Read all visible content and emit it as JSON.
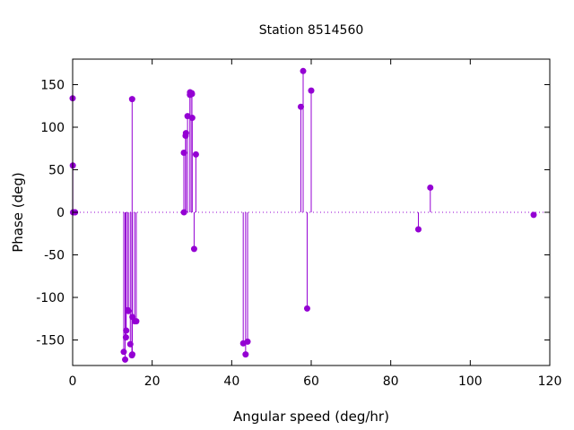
{
  "chart_data": {
    "type": "scatter",
    "style": "impulses-with-points",
    "title": "Station 8514560",
    "xlabel": "Angular speed (deg/hr)",
    "ylabel": "Phase (deg)",
    "xlim": [
      0,
      120
    ],
    "ylim": [
      -180,
      180
    ],
    "xticks": [
      0,
      20,
      40,
      60,
      80,
      100,
      120
    ],
    "yticks": [
      -150,
      -100,
      -50,
      0,
      50,
      100,
      150
    ],
    "grid": false,
    "zero_line": "dotted",
    "color": "#9400d3",
    "series": [
      {
        "x": [
          0.0,
          0.04,
          0.1,
          0.5,
          0.6,
          12.85,
          13.2,
          13.4,
          13.47,
          13.9,
          14.0,
          14.5,
          14.9,
          14.96,
          15.0,
          15.04,
          15.6,
          16.0,
          27.97,
          28.0,
          28.4,
          28.5,
          28.9,
          29.5,
          29.53,
          29.96,
          30.0,
          30.08,
          30.55,
          31.0,
          42.9,
          43.5,
          44.0,
          57.4,
          57.97,
          58.98,
          60.0,
          86.95,
          89.95,
          115.94
        ],
        "y": [
          134,
          55,
          0,
          0,
          0,
          -164,
          -173,
          -147,
          -139,
          -115,
          -116,
          -155,
          -168,
          133,
          -167,
          -123,
          -128,
          -128,
          70,
          0,
          90,
          93,
          113,
          138,
          141,
          140,
          139,
          111,
          -43,
          68,
          -154,
          -167,
          -152,
          124,
          166,
          -113,
          143,
          -20,
          29,
          -3
        ]
      }
    ]
  }
}
